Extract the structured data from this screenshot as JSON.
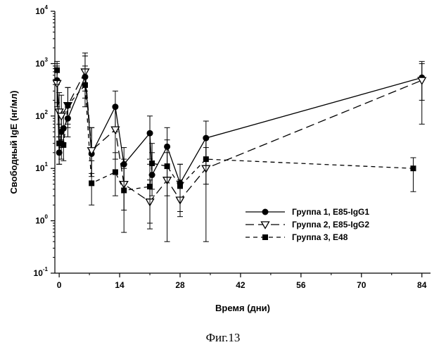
{
  "caption": "Фиг.13",
  "chart_data": {
    "type": "line",
    "title": "",
    "xlabel": "Время (дни)",
    "ylabel": "Свободный IgE (нг/мл)",
    "xlim": [
      -1,
      86
    ],
    "x_ticks": [
      0,
      14,
      28,
      42,
      56,
      70,
      84
    ],
    "y_scale": "log",
    "ylim": [
      0.1,
      10000
    ],
    "y_ticks": [
      {
        "base": "10",
        "exp": "-1",
        "value": 0.1
      },
      {
        "base": "10",
        "exp": "0",
        "value": 1
      },
      {
        "base": "10",
        "exp": "1",
        "value": 10
      },
      {
        "base": "10",
        "exp": "2",
        "value": 100
      },
      {
        "base": "10",
        "exp": "3",
        "value": 1000
      },
      {
        "base": "10",
        "exp": "4",
        "value": 10000
      }
    ],
    "legend": {
      "position": "bottom-right"
    },
    "series": [
      {
        "name": "Группа 1,  E85-IgG1",
        "marker": "circle",
        "line": "solid",
        "points": [
          {
            "x": -0.5,
            "y": 480,
            "lo": 150,
            "hi": 1100
          },
          {
            "x": 0,
            "y": 20,
            "lo": 12,
            "hi": 40
          },
          {
            "x": 0.5,
            "y": 50,
            "lo": 25,
            "hi": 100
          },
          {
            "x": 1,
            "y": 58,
            "lo": 30,
            "hi": 120
          },
          {
            "x": 2,
            "y": 90,
            "lo": 40,
            "hi": 180
          },
          {
            "x": 6,
            "y": 560,
            "lo": 220,
            "hi": 1600
          },
          {
            "x": 7.5,
            "y": 19,
            "lo": 7,
            "hi": 60
          },
          {
            "x": 13,
            "y": 150,
            "lo": 50,
            "hi": 300
          },
          {
            "x": 15,
            "y": 12,
            "lo": 5,
            "hi": 25
          },
          {
            "x": 21,
            "y": 47,
            "lo": 15,
            "hi": 100
          },
          {
            "x": 21.5,
            "y": 7.5,
            "lo": 3,
            "hi": 20
          },
          {
            "x": 25,
            "y": 26,
            "lo": 10,
            "hi": 60
          },
          {
            "x": 28,
            "y": 5.2,
            "lo": 2.5,
            "hi": 12
          },
          {
            "x": 34,
            "y": 38,
            "lo": 15,
            "hi": 80
          },
          {
            "x": 84,
            "y": 540,
            "lo": 200,
            "hi": 1100
          }
        ]
      },
      {
        "name": "Группа 2,  E85-IgG2",
        "marker": "triangle-down",
        "line": "long-dash",
        "points": [
          {
            "x": -0.5,
            "y": 420,
            "lo": 180,
            "hi": 900
          },
          {
            "x": 0,
            "y": 120,
            "lo": 40,
            "hi": 280
          },
          {
            "x": 0.5,
            "y": 100,
            "lo": 35,
            "hi": 250
          },
          {
            "x": 2,
            "y": 160,
            "lo": 60,
            "hi": 350
          },
          {
            "x": 6,
            "y": 700,
            "lo": 300,
            "hi": 1400
          },
          {
            "x": 7.5,
            "y": 22,
            "lo": 8,
            "hi": 60
          },
          {
            "x": 13,
            "y": 55,
            "lo": 15,
            "hi": 150
          },
          {
            "x": 15,
            "y": 5,
            "lo": 1.6,
            "hi": 15
          },
          {
            "x": 21,
            "y": 2.3,
            "lo": 0.9,
            "hi": 6
          },
          {
            "x": 25,
            "y": 6,
            "lo": 0.4,
            "hi": 20
          },
          {
            "x": 28,
            "y": 2.5,
            "lo": 1.2,
            "hi": 6
          },
          {
            "x": 34,
            "y": 10,
            "lo": 0.4,
            "hi": 25
          },
          {
            "x": 84,
            "y": 480,
            "lo": 70,
            "hi": 1000
          }
        ]
      },
      {
        "name": "Группа 3,  E48",
        "marker": "square",
        "line": "short-dash",
        "points": [
          {
            "x": -0.5,
            "y": 750,
            "lo": 400,
            "hi": 1000
          },
          {
            "x": 0,
            "y": 30,
            "lo": 12,
            "hi": 70
          },
          {
            "x": 0.5,
            "y": 30,
            "lo": 15,
            "hi": 60
          },
          {
            "x": 1,
            "y": 28,
            "lo": 14,
            "hi": 55
          },
          {
            "x": 2,
            "y": 160,
            "lo": 70,
            "hi": 350
          },
          {
            "x": 6,
            "y": 390,
            "lo": 150,
            "hi": 900
          },
          {
            "x": 7.5,
            "y": 5.2,
            "lo": 2,
            "hi": 14
          },
          {
            "x": 13,
            "y": 8.5,
            "lo": 3,
            "hi": 20
          },
          {
            "x": 15,
            "y": 3.8,
            "lo": 0.6,
            "hi": 10
          },
          {
            "x": 21,
            "y": 4.5,
            "lo": 0.7,
            "hi": 12
          },
          {
            "x": 21.5,
            "y": 12.5,
            "lo": 4,
            "hi": 30
          },
          {
            "x": 25,
            "y": 11,
            "lo": 3,
            "hi": 35
          },
          {
            "x": 28,
            "y": 4.6,
            "lo": 1.5,
            "hi": 12
          },
          {
            "x": 34,
            "y": 15,
            "lo": 5,
            "hi": 40
          },
          {
            "x": 82,
            "y": 10,
            "lo": 3.6,
            "hi": 16
          }
        ]
      }
    ]
  }
}
